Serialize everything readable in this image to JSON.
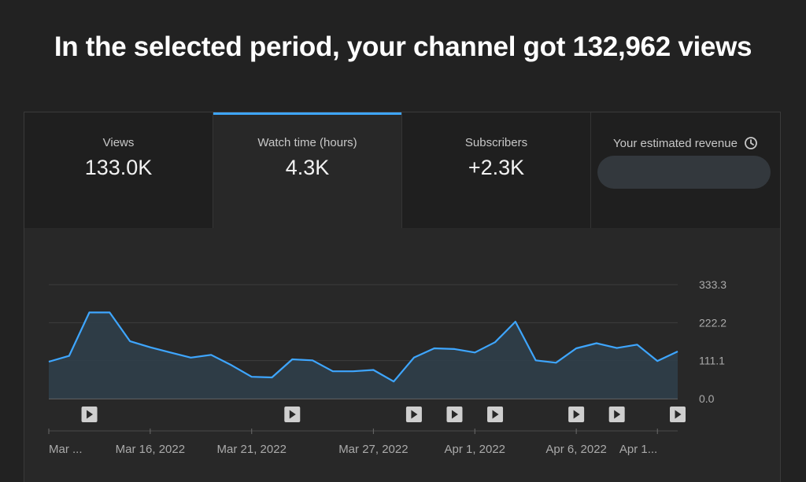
{
  "headline": "In the selected period, your channel got 132,962 views",
  "tabs": [
    {
      "label": "Views",
      "value": "133.0K",
      "active": false
    },
    {
      "label": "Watch time (hours)",
      "value": "4.3K",
      "active": true
    },
    {
      "label": "Subscribers",
      "value": "+2.3K",
      "active": false
    },
    {
      "label": "Your estimated revenue",
      "value": "",
      "active": false,
      "icon": "clock-icon"
    }
  ],
  "colors": {
    "accent": "#3ea6ff",
    "line": "#3ea6ff"
  },
  "chart_data": {
    "type": "area",
    "y_ticks": [
      "333.3",
      "222.2",
      "111.1",
      "0.0"
    ],
    "ylim": [
      0,
      333.3
    ],
    "x_ticks": [
      "Mar ...",
      "Mar 16, 2022",
      "Mar 21, 2022",
      "Mar 27, 2022",
      "Apr 1, 2022",
      "Apr 6, 2022",
      "Apr 1..."
    ],
    "x_tick_index": [
      0,
      5,
      10,
      16,
      21,
      26,
      30
    ],
    "values": [
      108,
      125,
      252,
      252,
      168,
      150,
      135,
      120,
      128,
      98,
      64,
      62,
      115,
      112,
      80,
      80,
      84,
      50,
      120,
      147,
      145,
      135,
      165,
      225,
      112,
      105,
      147,
      162,
      148,
      158,
      110,
      138
    ],
    "video_markers": [
      2,
      12,
      18,
      20,
      22,
      26,
      28,
      31
    ]
  }
}
